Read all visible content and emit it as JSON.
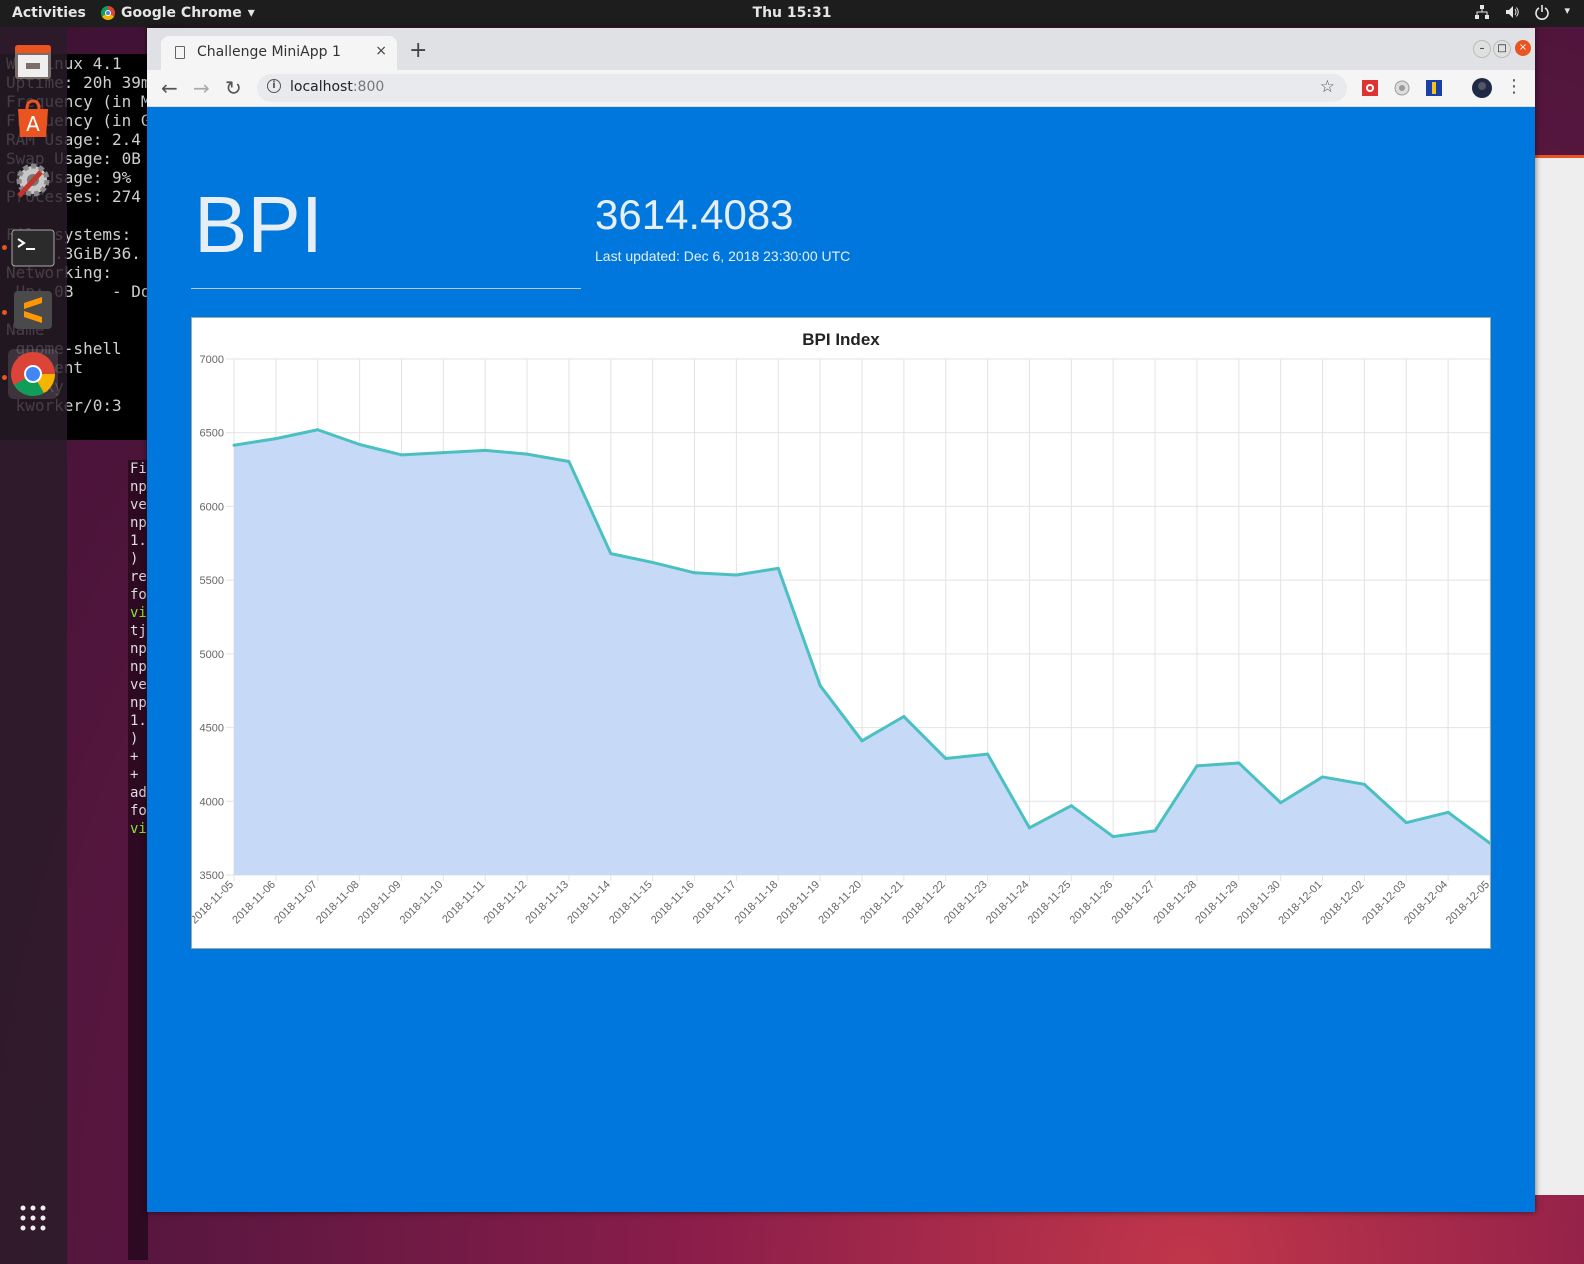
{
  "topbar": {
    "activities": "Activities",
    "app_name": "Google Chrome",
    "app_arrow": "▾",
    "clock": "Thu 15:31",
    "icons": [
      "network-icon",
      "volume-icon",
      "power-icon"
    ]
  },
  "conky_lines": [
    "W  Linux 4.1",
    "Uptime: 20h 39m",
    "Frequency (in M",
    "Frequency (in G",
    "RAM Usage: 2.4",
    "Swap Usage: 0B",
    "CPU Usage: 9% ",
    "Processes: 274",
    "",
    "File systems:",
    " / 30.3GiB/36.",
    "Networking:",
    " Up: 0B    - Dow",
    "",
    "Name",
    " gnome-shell",
    " Xclient",
    " conky",
    " kworker/0:3"
  ],
  "terminal_snippet": [
    "Fi",
    "np",
    "ve",
    "np",
    "1.",
    ")",
    "",
    "re",
    "fo",
    "",
    "vi",
    "tj",
    "np",
    "np",
    "ve",
    "np",
    "1.",
    ")",
    "",
    "+",
    "+",
    "ad",
    "fo",
    "",
    "vi"
  ],
  "browser": {
    "tab_title": "Challenge MiniApp 1",
    "tab_close": "×",
    "new_tab": "+",
    "url_host": "localhost",
    "url_port": ":800",
    "back": "←",
    "forward": "→",
    "reload": "↻",
    "star": "☆",
    "menu": "⋮",
    "info": "i"
  },
  "page": {
    "title": "BPI",
    "value": "3614.4083",
    "updated": "Last updated: Dec 6, 2018 23:30:00 UTC"
  },
  "colors": {
    "page_bg": "#0077dc",
    "line": "#4bc0c0",
    "fill": "#c6d9f7"
  },
  "chart_data": {
    "type": "area",
    "title": "BPI Index",
    "x": [
      "2018-11-05",
      "2018-11-06",
      "2018-11-07",
      "2018-11-08",
      "2018-11-09",
      "2018-11-10",
      "2018-11-11",
      "2018-11-12",
      "2018-11-13",
      "2018-11-14",
      "2018-11-15",
      "2018-11-16",
      "2018-11-17",
      "2018-11-18",
      "2018-11-19",
      "2018-11-20",
      "2018-11-21",
      "2018-11-22",
      "2018-11-23",
      "2018-11-24",
      "2018-11-25",
      "2018-11-26",
      "2018-11-27",
      "2018-11-28",
      "2018-11-29",
      "2018-11-30",
      "2018-12-01",
      "2018-12-02",
      "2018-12-03",
      "2018-12-04",
      "2018-12-05"
    ],
    "values": [
      6415,
      6460,
      6520,
      6420,
      6350,
      6365,
      6380,
      6355,
      6305,
      5680,
      5620,
      5550,
      5535,
      5580,
      4785,
      4410,
      4575,
      4290,
      4320,
      3820,
      3970,
      3760,
      3800,
      4240,
      4260,
      3990,
      4165,
      4115,
      3855,
      3925,
      3715
    ],
    "ylim": [
      3500,
      7000
    ],
    "yticks": [
      7000,
      6500,
      6000,
      5500,
      5000,
      4500,
      4000,
      3500
    ],
    "grid": true,
    "legend": "none"
  }
}
